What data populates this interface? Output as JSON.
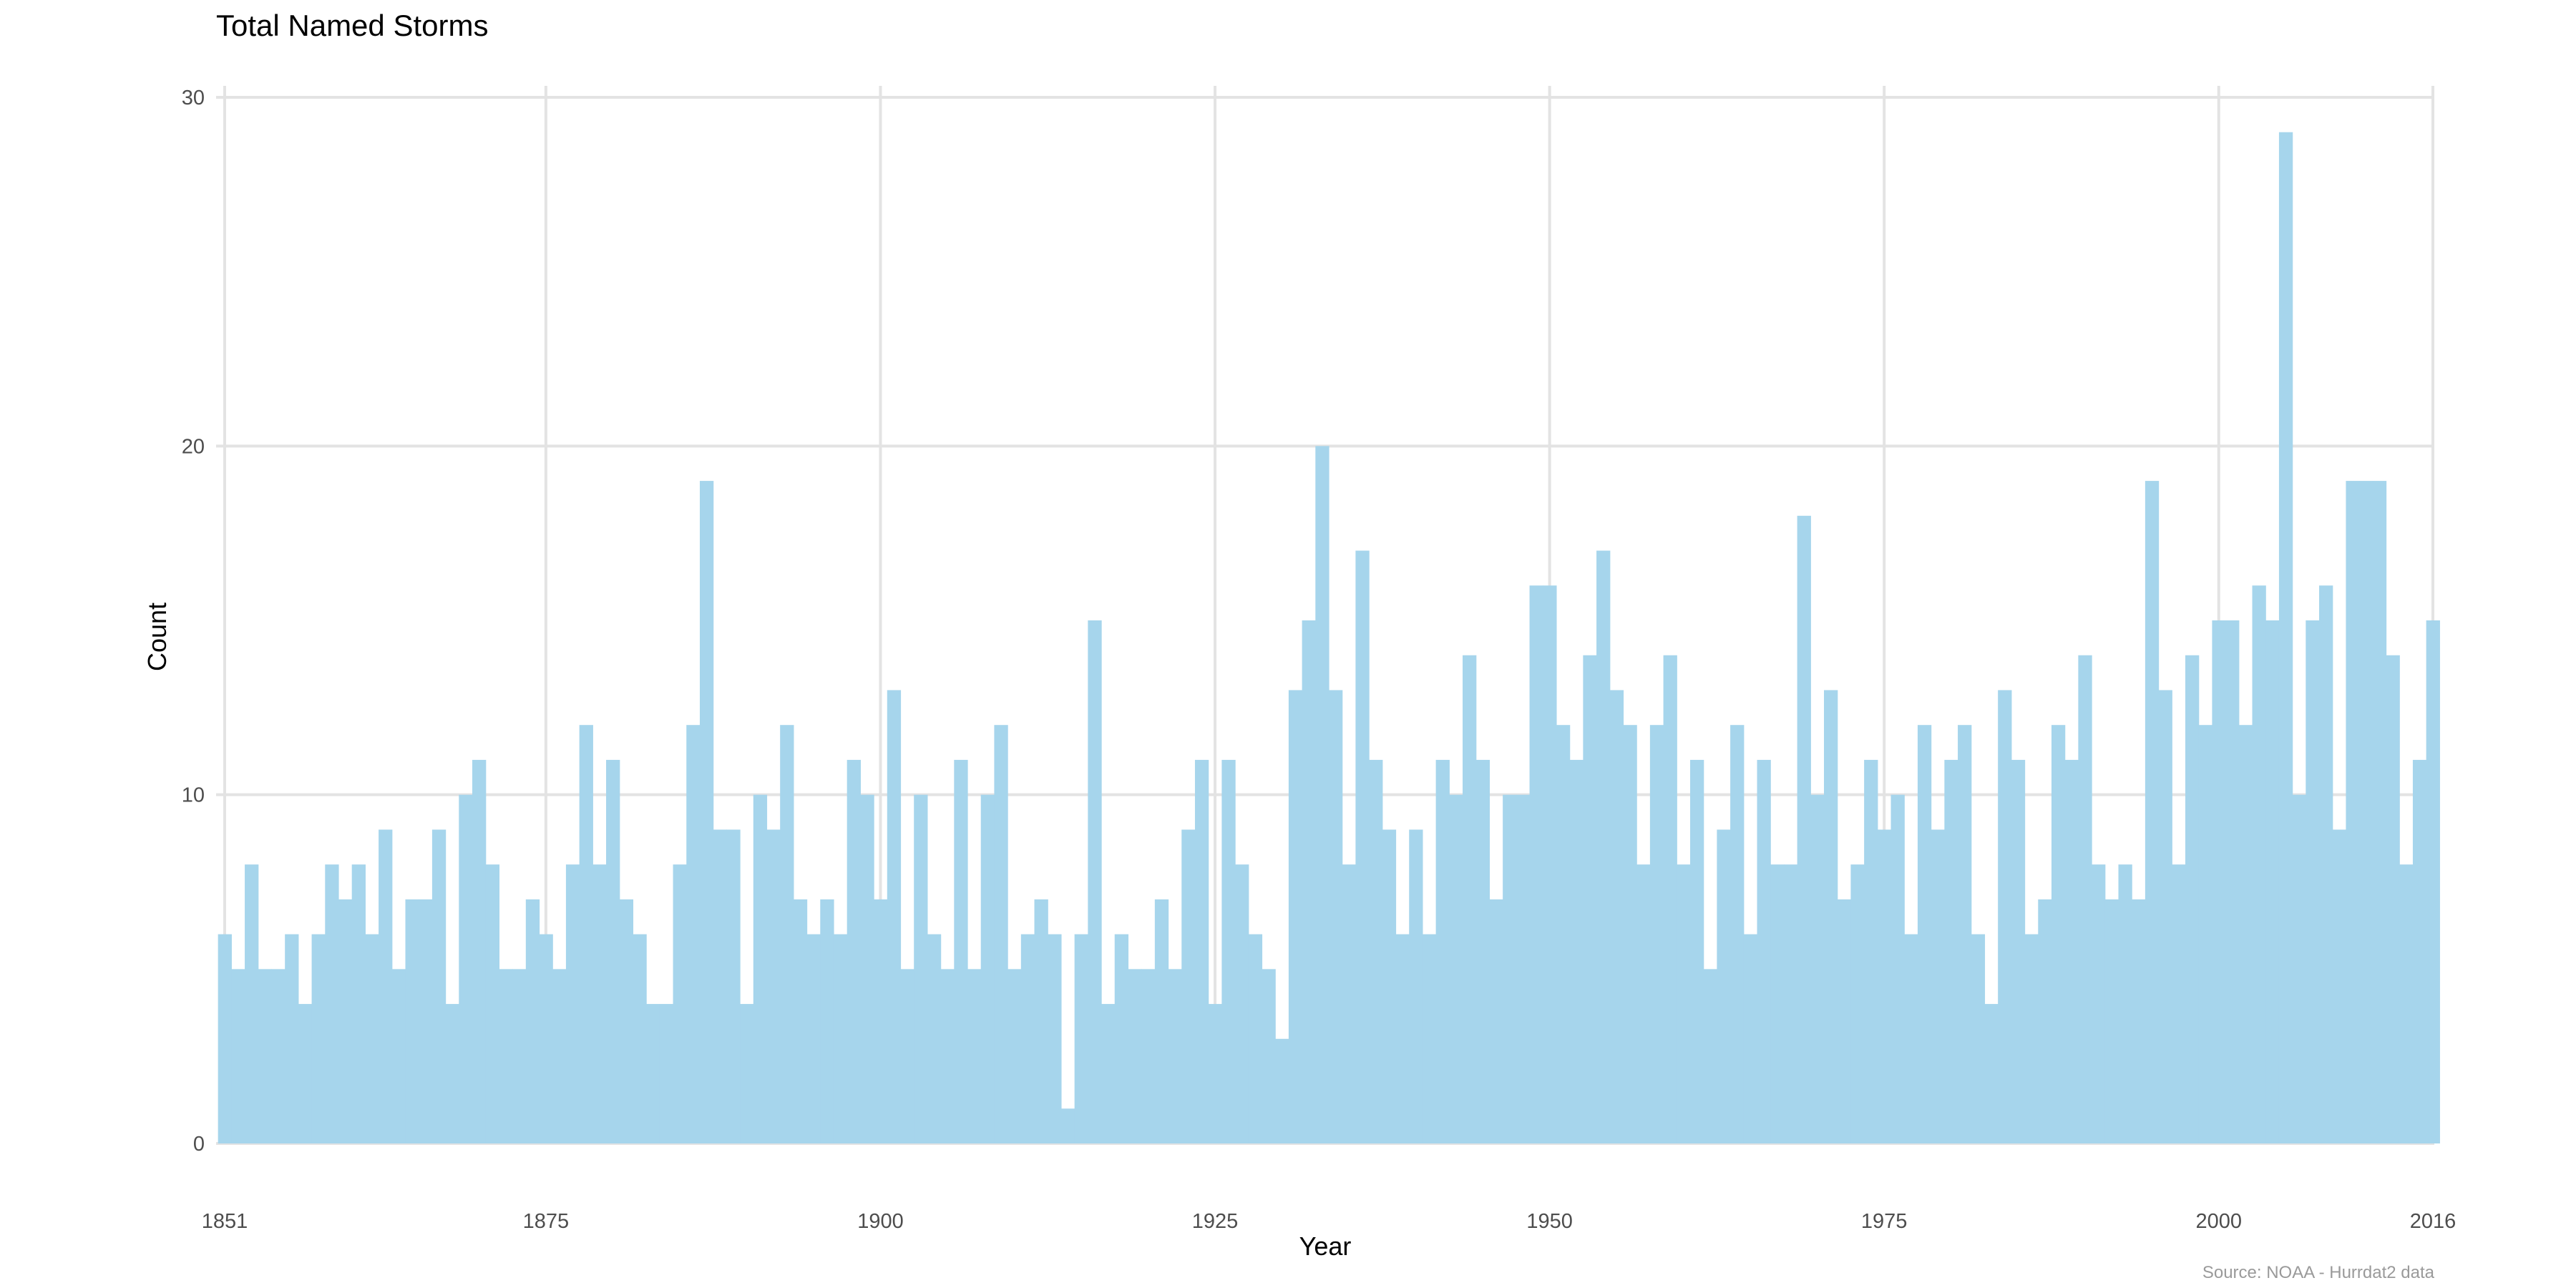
{
  "chart_data": {
    "type": "bar",
    "title": "Total Named Storms",
    "xlabel": "Year",
    "ylabel": "Count",
    "caption": "Source: NOAA - Hurrdat2 data",
    "bar_color": "#a6d5ec",
    "grid_color": "#e3e3e3",
    "xlim": [
      1851,
      2016
    ],
    "ylim": [
      0,
      30
    ],
    "x_ticks": [
      1851,
      1875,
      1900,
      1925,
      1950,
      1975,
      2000,
      2016
    ],
    "y_ticks": [
      0,
      10,
      20,
      30
    ],
    "x": [
      1851,
      1852,
      1853,
      1854,
      1855,
      1856,
      1857,
      1858,
      1859,
      1860,
      1861,
      1862,
      1863,
      1864,
      1865,
      1866,
      1867,
      1868,
      1869,
      1870,
      1871,
      1872,
      1873,
      1874,
      1875,
      1876,
      1877,
      1878,
      1879,
      1880,
      1881,
      1882,
      1883,
      1884,
      1885,
      1886,
      1887,
      1888,
      1889,
      1890,
      1891,
      1892,
      1893,
      1894,
      1895,
      1896,
      1897,
      1898,
      1899,
      1900,
      1901,
      1902,
      1903,
      1904,
      1905,
      1906,
      1907,
      1908,
      1909,
      1910,
      1911,
      1912,
      1913,
      1914,
      1915,
      1916,
      1917,
      1918,
      1919,
      1920,
      1921,
      1922,
      1923,
      1924,
      1925,
      1926,
      1927,
      1928,
      1929,
      1930,
      1931,
      1932,
      1933,
      1934,
      1935,
      1936,
      1937,
      1938,
      1939,
      1940,
      1941,
      1942,
      1943,
      1944,
      1945,
      1946,
      1947,
      1948,
      1949,
      1950,
      1951,
      1952,
      1953,
      1954,
      1955,
      1956,
      1957,
      1958,
      1959,
      1960,
      1961,
      1962,
      1963,
      1964,
      1965,
      1966,
      1967,
      1968,
      1969,
      1970,
      1971,
      1972,
      1973,
      1974,
      1975,
      1976,
      1977,
      1978,
      1979,
      1980,
      1981,
      1982,
      1983,
      1984,
      1985,
      1986,
      1987,
      1988,
      1989,
      1990,
      1991,
      1992,
      1993,
      1994,
      1995,
      1996,
      1997,
      1998,
      1999,
      2000,
      2001,
      2002,
      2003,
      2004,
      2005,
      2006,
      2007,
      2008,
      2009,
      2010,
      2011,
      2012,
      2013,
      2014,
      2015,
      2016
    ],
    "values": [
      6,
      5,
      8,
      5,
      5,
      6,
      4,
      6,
      8,
      7,
      8,
      6,
      9,
      5,
      7,
      7,
      9,
      4,
      10,
      11,
      8,
      5,
      5,
      7,
      6,
      5,
      8,
      12,
      8,
      11,
      7,
      6,
      4,
      4,
      8,
      12,
      19,
      9,
      9,
      4,
      10,
      9,
      12,
      7,
      6,
      7,
      6,
      11,
      10,
      7,
      13,
      5,
      10,
      6,
      5,
      11,
      5,
      10,
      12,
      5,
      6,
      7,
      6,
      1,
      6,
      15,
      4,
      6,
      5,
      5,
      7,
      5,
      9,
      11,
      4,
      11,
      8,
      6,
      5,
      3,
      13,
      15,
      20,
      13,
      8,
      17,
      11,
      9,
      6,
      9,
      6,
      11,
      10,
      14,
      11,
      7,
      10,
      10,
      16,
      16,
      12,
      11,
      14,
      17,
      13,
      12,
      8,
      12,
      14,
      8,
      11,
      5,
      9,
      12,
      6,
      11,
      8,
      8,
      18,
      10,
      13,
      7,
      8,
      11,
      9,
      10,
      6,
      12,
      9,
      11,
      12,
      6,
      4,
      13,
      11,
      6,
      7,
      12,
      11,
      14,
      8,
      7,
      8,
      7,
      19,
      13,
      8,
      14,
      12,
      15,
      15,
      12,
      16,
      15,
      29,
      10,
      15,
      16,
      9,
      19,
      19,
      19,
      14,
      8,
      11,
      15
    ]
  }
}
